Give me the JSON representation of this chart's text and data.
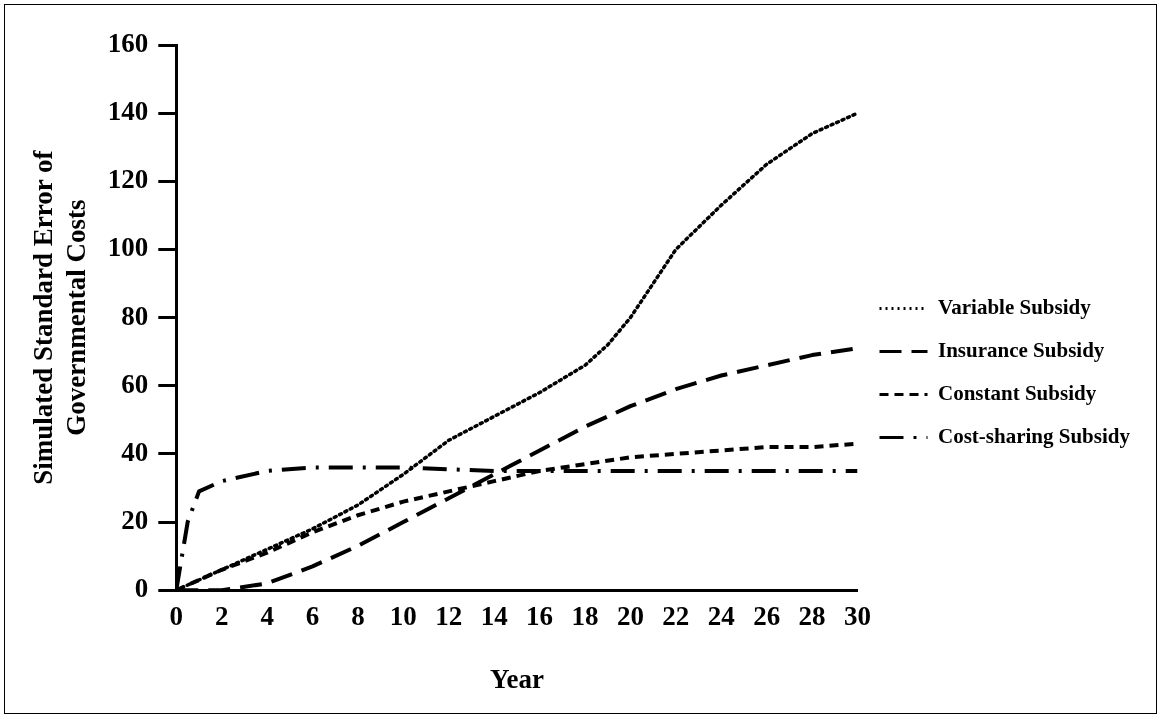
{
  "chart_data": {
    "type": "line",
    "xlabel": "Year",
    "ylabel": "Simulated Standard Error of Governmental Costs",
    "xlim": [
      0,
      30
    ],
    "xticks": [
      0,
      2,
      4,
      6,
      8,
      10,
      12,
      14,
      16,
      18,
      20,
      22,
      24,
      26,
      28,
      30
    ],
    "ylim": [
      0,
      160
    ],
    "yticks": [
      0,
      20,
      40,
      60,
      80,
      100,
      120,
      140,
      160
    ],
    "grid": false,
    "legend": "right",
    "marker": "none",
    "series": [
      {
        "name": "Variable Subsidy",
        "color": "#000000",
        "line_style": "dotted",
        "x": [
          0,
          2,
          4,
          6,
          8,
          10,
          12,
          14,
          16,
          18,
          19,
          20,
          22,
          24,
          26,
          28,
          30
        ],
        "values": [
          0,
          6,
          12,
          18,
          25,
          34,
          44,
          51,
          58,
          66,
          72,
          80,
          100,
          113,
          125,
          134,
          140
        ]
      },
      {
        "name": "Insurance Subsidy",
        "color": "#000000",
        "line_style": "dashed",
        "x": [
          0,
          2,
          4,
          6,
          8,
          10,
          12,
          14,
          16,
          18,
          20,
          22,
          24,
          26,
          28,
          30
        ],
        "values": [
          0,
          0,
          2,
          7,
          13,
          20,
          27,
          34,
          41,
          48,
          54,
          59,
          63,
          66,
          69,
          71
        ]
      },
      {
        "name": "Constant Subsidy",
        "color": "#000000",
        "line_style": "dashed",
        "x": [
          0,
          2,
          4,
          6,
          8,
          10,
          12,
          14,
          16,
          18,
          20,
          22,
          24,
          26,
          28,
          30
        ],
        "values": [
          0,
          6,
          11,
          17,
          22,
          26,
          29,
          32,
          35,
          37,
          39,
          40,
          41,
          42,
          42,
          43
        ]
      },
      {
        "name": "Cost-sharing Subsidy",
        "color": "#000000",
        "line_style": "dashdot",
        "x": [
          0,
          0.5,
          1,
          2,
          4,
          6,
          10,
          14,
          20,
          30
        ],
        "values": [
          0,
          20,
          29,
          32,
          35,
          36,
          36,
          35,
          35,
          35
        ]
      }
    ]
  }
}
